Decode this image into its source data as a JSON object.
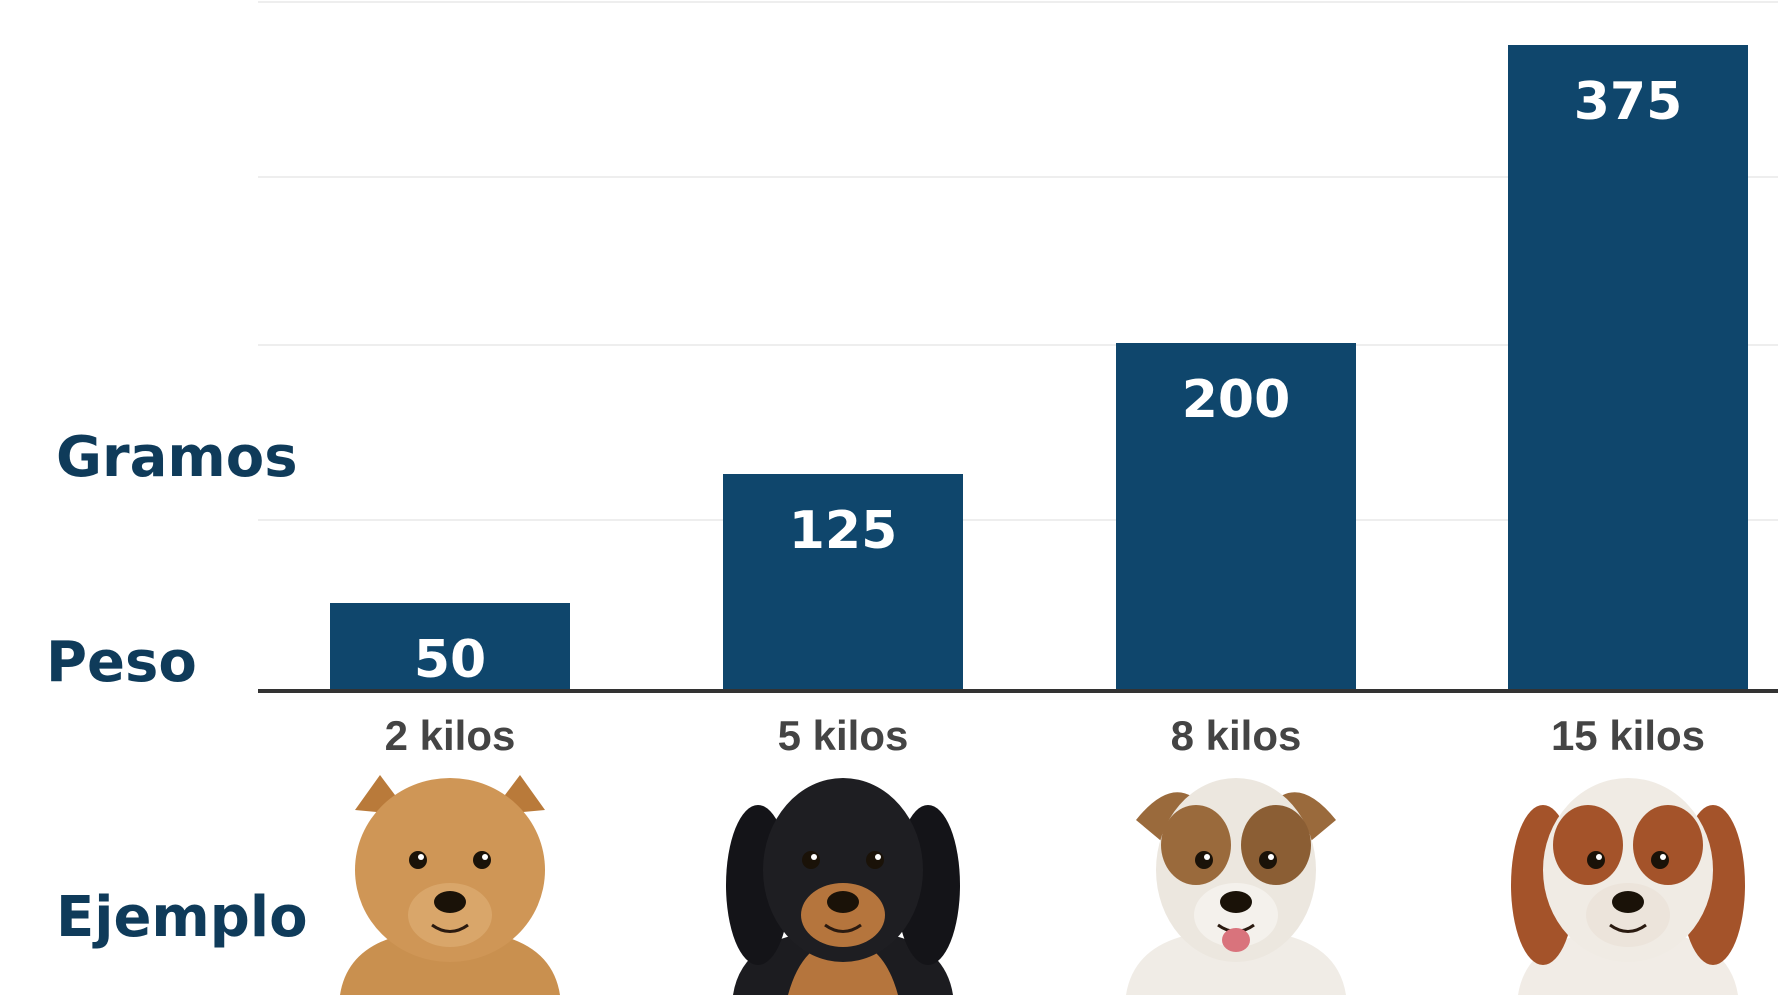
{
  "labels": {
    "gramos": "Gramos",
    "peso": "Peso",
    "ejemplo": "Ejemplo"
  },
  "colors": {
    "bar": "#0f466c",
    "text_dark": "#0f3b5a",
    "tick_text": "#444444",
    "grid": "#eeeeee",
    "axis": "#333333"
  },
  "chart_data": {
    "type": "bar",
    "categories": [
      "2 kilos",
      "5 kilos",
      "8 kilos",
      "15 kilos"
    ],
    "values": [
      50,
      125,
      200,
      375
    ],
    "data_labels": [
      "50",
      "125",
      "200",
      "375"
    ],
    "ylim": [
      0,
      400
    ],
    "grid": true,
    "legend": "none"
  },
  "examples": [
    {
      "category": "2 kilos",
      "icon": "pomeranian-dog-icon"
    },
    {
      "category": "5 kilos",
      "icon": "dachshund-puppy-icon"
    },
    {
      "category": "8 kilos",
      "icon": "fox-terrier-dog-icon"
    },
    {
      "category": "15 kilos",
      "icon": "brittany-spaniel-dog-icon"
    }
  ]
}
